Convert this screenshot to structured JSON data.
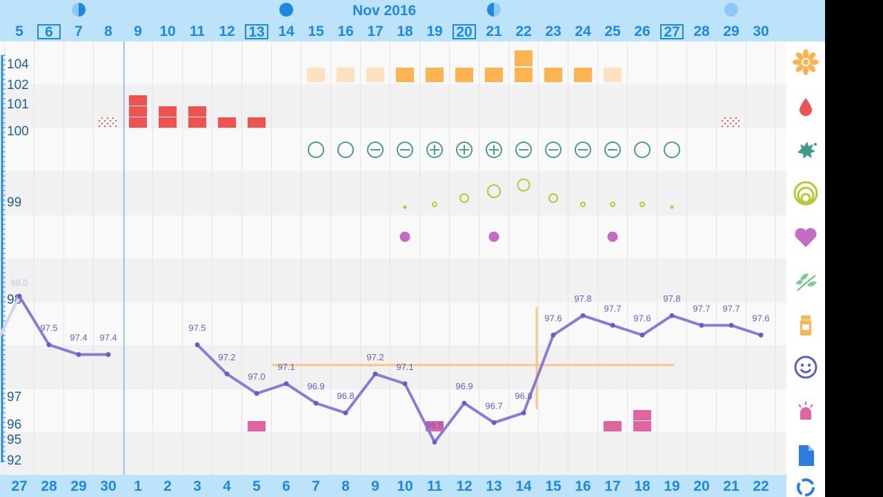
{
  "header": {
    "month_label": "Nov 2016",
    "dates": [
      "5",
      "6",
      "7",
      "8",
      "9",
      "10",
      "11",
      "12",
      "13",
      "14",
      "15",
      "16",
      "17",
      "18",
      "19",
      "20",
      "21",
      "22",
      "23",
      "24",
      "25",
      "26",
      "27",
      "28",
      "29",
      "30"
    ],
    "boxed_dates": [
      "6",
      "13",
      "20",
      "27"
    ],
    "moon_phases": [
      {
        "date": "7",
        "phase": "first-quarter"
      },
      {
        "date": "14",
        "phase": "full-moon"
      },
      {
        "date": "21",
        "phase": "last-quarter"
      },
      {
        "date": "29",
        "phase": "new-moon"
      }
    ]
  },
  "footer": {
    "cycle_days": [
      "27",
      "28",
      "29",
      "30",
      "1",
      "2",
      "3",
      "4",
      "5",
      "6",
      "7",
      "8",
      "9",
      "10",
      "11",
      "12",
      "13",
      "14",
      "15",
      "16",
      "17",
      "18",
      "19",
      "20",
      "21",
      "22"
    ]
  },
  "chart_data": {
    "type": "line",
    "title": "",
    "xlabel": "",
    "ylabel": "",
    "x": [
      "Nov 5",
      "Nov 6",
      "Nov 7",
      "Nov 8",
      "Nov 9",
      "Nov 10",
      "Nov 11",
      "Nov 12",
      "Nov 13",
      "Nov 14",
      "Nov 15",
      "Nov 16",
      "Nov 17",
      "Nov 18",
      "Nov 19",
      "Nov 20",
      "Nov 21",
      "Nov 22",
      "Nov 23",
      "Nov 24",
      "Nov 25",
      "Nov 26",
      "Nov 27",
      "Nov 28",
      "Nov 29",
      "Nov 30"
    ],
    "y_tick_labels": [
      "104",
      "102",
      "101",
      "100",
      "99",
      "98",
      "97",
      "96",
      "95",
      "92"
    ],
    "prev_value": "98.0",
    "series": [
      {
        "values": [
          98.0,
          97.5,
          97.4,
          97.4,
          null,
          null,
          97.5,
          97.2,
          97.0,
          97.1,
          96.9,
          96.8,
          97.2,
          97.1,
          96.5,
          96.9,
          96.7,
          96.8,
          97.6,
          97.8,
          97.7,
          97.6,
          97.8,
          97.7,
          97.7,
          97.6
        ]
      }
    ],
    "value_labels": [
      "",
      "97.5",
      "97.4",
      "97.4",
      "",
      "",
      "97.5",
      "97.2",
      "97.0",
      "97.1",
      "96.9",
      "96.8",
      "97.2",
      "97.1",
      "96.5",
      "96.9",
      "96.7",
      "96.8",
      "97.6",
      "97.8",
      "97.7",
      "97.6",
      "97.8",
      "97.7",
      "97.7",
      "97.6"
    ],
    "coverline": 97.1,
    "coverline_range": [
      "Nov 14",
      "Nov 27"
    ],
    "ovulation_marker": "Nov 23",
    "cervical_fluid": [
      {
        "date": "Nov 15",
        "level": 1
      },
      {
        "date": "Nov 16",
        "level": 1
      },
      {
        "date": "Nov 17",
        "level": 1
      },
      {
        "date": "Nov 18",
        "level": 2
      },
      {
        "date": "Nov 19",
        "level": 2
      },
      {
        "date": "Nov 20",
        "level": 2
      },
      {
        "date": "Nov 21",
        "level": 2
      },
      {
        "date": "Nov 22",
        "level": 3
      },
      {
        "date": "Nov 23",
        "level": 2
      },
      {
        "date": "Nov 24",
        "level": 2
      },
      {
        "date": "Nov 25",
        "level": 1
      }
    ],
    "menstruation": [
      {
        "date": "Nov 8",
        "level": 0
      },
      {
        "date": "Nov 9",
        "level": 3
      },
      {
        "date": "Nov 10",
        "level": 2
      },
      {
        "date": "Nov 11",
        "level": 2
      },
      {
        "date": "Nov 12",
        "level": 1
      },
      {
        "date": "Nov 13",
        "level": 1
      },
      {
        "date": "Nov 29",
        "level": 0
      }
    ],
    "ovulation_tests": [
      {
        "date": "Nov 15",
        "result": "empty"
      },
      {
        "date": "Nov 16",
        "result": "empty"
      },
      {
        "date": "Nov 17",
        "result": "negative"
      },
      {
        "date": "Nov 18",
        "result": "negative"
      },
      {
        "date": "Nov 19",
        "result": "positive"
      },
      {
        "date": "Nov 20",
        "result": "positive"
      },
      {
        "date": "Nov 21",
        "result": "positive"
      },
      {
        "date": "Nov 22",
        "result": "negative"
      },
      {
        "date": "Nov 23",
        "result": "negative"
      },
      {
        "date": "Nov 24",
        "result": "negative"
      },
      {
        "date": "Nov 25",
        "result": "negative"
      },
      {
        "date": "Nov 26",
        "result": "empty"
      },
      {
        "date": "Nov 27",
        "result": "empty"
      }
    ],
    "cervix": [
      {
        "date": "Nov 18",
        "level": 1
      },
      {
        "date": "Nov 19",
        "level": 2
      },
      {
        "date": "Nov 20",
        "level": 3
      },
      {
        "date": "Nov 21",
        "level": 4
      },
      {
        "date": "Nov 22",
        "level": 4
      },
      {
        "date": "Nov 23",
        "level": 3
      },
      {
        "date": "Nov 24",
        "level": 2
      },
      {
        "date": "Nov 25",
        "level": 2
      },
      {
        "date": "Nov 26",
        "level": 2
      },
      {
        "date": "Nov 27",
        "level": 1
      }
    ],
    "intercourse": [
      "Nov 18",
      "Nov 21",
      "Nov 25"
    ],
    "symptoms": [
      {
        "date": "Nov 13",
        "count": 1
      },
      {
        "date": "Nov 19",
        "count": 1
      },
      {
        "date": "Nov 25",
        "count": 1
      },
      {
        "date": "Nov 26",
        "count": 2
      }
    ]
  },
  "side_icons": [
    "flower-icon",
    "drop-icon",
    "splash-icon",
    "cervix-icon",
    "heart-icon",
    "leaf-icon",
    "pill-bottle-icon",
    "smiley-icon",
    "bell-icon",
    "document-icon",
    "sync-icon"
  ],
  "colors": {
    "accent": "#1e88e5",
    "header_bg": "#bde3fb",
    "temperature_line": "#8a7bd8",
    "coverline": "#f5c886",
    "cervical_fluid": "#fbb450",
    "cervical_fluid_light": "#fde2bf",
    "menstruation": "#ef5350",
    "ovulation_test": "#4a9c8a",
    "cervix": "#b5c934",
    "intercourse": "#c56ac5",
    "symptom": "#e064a0"
  }
}
